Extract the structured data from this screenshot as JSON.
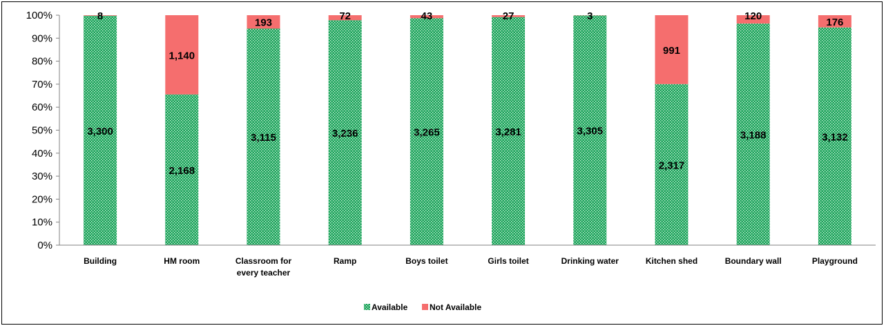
{
  "chart_data": {
    "type": "bar",
    "stacked": "percent",
    "categories": [
      [
        "Building"
      ],
      [
        "HM room"
      ],
      [
        "Classroom for",
        "every teacher"
      ],
      [
        "Ramp"
      ],
      [
        "Boys toilet"
      ],
      [
        "Girls  toilet"
      ],
      [
        "Drinking water"
      ],
      [
        "Kitchen shed"
      ],
      [
        "Boundary wall"
      ],
      [
        "Playground"
      ]
    ],
    "series": [
      {
        "name": "Available",
        "color": "#1aa35a",
        "pattern": "dotted-green",
        "values": [
          3300,
          2168,
          3115,
          3236,
          3265,
          3281,
          3305,
          2317,
          3188,
          3132
        ],
        "labels": [
          "3,300",
          "2,168",
          "3,115",
          "3,236",
          "3,265",
          "3,281",
          "3,305",
          "2,317",
          "3,188",
          "3,132"
        ]
      },
      {
        "name": "Not Available",
        "color": "#f56e6e",
        "values": [
          8,
          1140,
          193,
          72,
          43,
          27,
          3,
          991,
          120,
          176
        ],
        "labels": [
          "8",
          "1,140",
          "193",
          "72",
          "43",
          "27",
          "3",
          "991",
          "120",
          "176"
        ]
      }
    ],
    "y_ticks": [
      "0%",
      "10%",
      "20%",
      "30%",
      "40%",
      "50%",
      "60%",
      "70%",
      "80%",
      "90%",
      "100%"
    ],
    "ylim": [
      0,
      100
    ],
    "grid": false,
    "legend_position": "bottom"
  }
}
